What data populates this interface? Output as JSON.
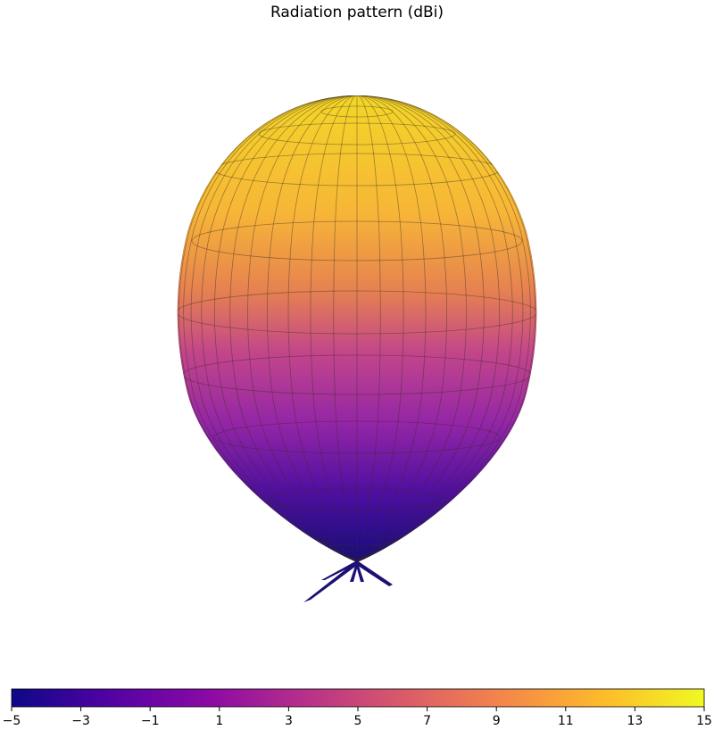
{
  "chart_data": {
    "type": "surface",
    "title": "Radiation pattern (dBi)",
    "colormap": "plasma",
    "clim": [
      -5,
      15
    ],
    "cticks": [
      {
        "value": -5,
        "label": "−5"
      },
      {
        "value": -3,
        "label": "−3"
      },
      {
        "value": -1,
        "label": "−1"
      },
      1,
      3,
      5,
      7,
      9,
      11,
      13,
      15
    ]
  }
}
